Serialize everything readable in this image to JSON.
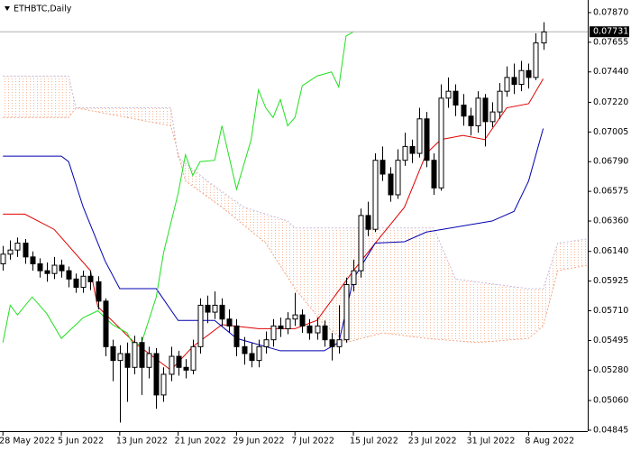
{
  "chart_data": {
    "type": "candlestick",
    "title": "ETHBTC,Daily",
    "xlim": [
      -0.4,
      80.1
    ],
    "xticks": [
      {
        "value": 0,
        "label": "28 May 2022"
      },
      {
        "value": 8,
        "label": "5 Jun 2022"
      },
      {
        "value": 16,
        "label": "13 Jun 2022"
      },
      {
        "value": 24,
        "label": "21 Jun 2022"
      },
      {
        "value": 32,
        "label": "29 Jun 2022"
      },
      {
        "value": 40,
        "label": "7 Jul 2022"
      },
      {
        "value": 48,
        "label": "15 Jul 2022"
      },
      {
        "value": 56,
        "label": "23 Jul 2022"
      },
      {
        "value": 64,
        "label": "31 Jul 2022"
      },
      {
        "value": 72,
        "label": "8 Aug 2022"
      }
    ],
    "ylim": [
      0.04838,
      0.07961
    ],
    "yticks": [
      {
        "value": 0.0787,
        "label": "0.07870"
      },
      0.07655,
      {
        "value": 0.0744,
        "label": "0.07440"
      },
      {
        "value": 0.0722,
        "label": "0.07220"
      },
      0.07005,
      {
        "value": 0.0679,
        "label": "0.06790"
      },
      0.06575,
      {
        "value": 0.0636,
        "label": "0.06360"
      },
      {
        "value": 0.0614,
        "label": "0.06140"
      },
      0.05925,
      {
        "value": 0.0571,
        "label": "0.05710"
      },
      0.05495,
      {
        "value": 0.0528,
        "label": "0.05280"
      },
      {
        "value": 0.0506,
        "label": "0.05060"
      },
      0.04845
    ],
    "current_price": 0.07731,
    "candles": {
      "open": [
        0.0605,
        0.0612,
        0.0615,
        0.062,
        0.061,
        0.0605,
        0.06,
        0.0598,
        0.0604,
        0.06,
        0.0594,
        0.0588,
        0.0596,
        0.0592,
        0.0578,
        0.0545,
        0.0535,
        0.054,
        0.053,
        0.0548,
        0.053,
        0.054,
        0.051,
        0.0525,
        0.0538,
        0.053,
        0.0528,
        0.0545,
        0.0575,
        0.057,
        0.0575,
        0.0565,
        0.056,
        0.0545,
        0.054,
        0.0535,
        0.0545,
        0.055,
        0.056,
        0.0558,
        0.0565,
        0.0568,
        0.056,
        0.0555,
        0.056,
        0.055,
        0.0545,
        0.055,
        0.059,
        0.06,
        0.064,
        0.063,
        0.068,
        0.067,
        0.0655,
        0.068,
        0.069,
        0.0685,
        0.071,
        0.068,
        0.066,
        0.0725,
        0.073,
        0.072,
        0.0712,
        0.0705,
        0.0725,
        0.0708,
        0.0715,
        0.073,
        0.074,
        0.0735,
        0.0745,
        0.074,
        0.0765
      ],
      "high": [
        0.0618,
        0.0622,
        0.0624,
        0.0623,
        0.0614,
        0.0609,
        0.0606,
        0.061,
        0.0608,
        0.0603,
        0.0598,
        0.06,
        0.06,
        0.0596,
        0.058,
        0.055,
        0.0546,
        0.0548,
        0.0553,
        0.0552,
        0.0545,
        0.0544,
        0.053,
        0.0545,
        0.0542,
        0.0536,
        0.055,
        0.058,
        0.0582,
        0.0585,
        0.058,
        0.0572,
        0.0565,
        0.0552,
        0.0548,
        0.055,
        0.0556,
        0.0565,
        0.0566,
        0.057,
        0.0584,
        0.0572,
        0.0565,
        0.0566,
        0.0564,
        0.0555,
        0.0575,
        0.0595,
        0.0608,
        0.0645,
        0.065,
        0.0685,
        0.069,
        0.0675,
        0.0688,
        0.07,
        0.0695,
        0.0718,
        0.0715,
        0.0685,
        0.0735,
        0.074,
        0.0735,
        0.0728,
        0.0718,
        0.073,
        0.0728,
        0.0722,
        0.0736,
        0.0748,
        0.075,
        0.0752,
        0.075,
        0.0772,
        0.078
      ],
      "low": [
        0.06,
        0.0608,
        0.061,
        0.0605,
        0.06,
        0.0595,
        0.0592,
        0.0594,
        0.0595,
        0.0588,
        0.0584,
        0.0584,
        0.0586,
        0.0572,
        0.0538,
        0.052,
        0.049,
        0.0505,
        0.0525,
        0.051,
        0.0522,
        0.05,
        0.0505,
        0.052,
        0.0524,
        0.0522,
        0.0525,
        0.054,
        0.0562,
        0.0565,
        0.056,
        0.0555,
        0.0538,
        0.0532,
        0.053,
        0.053,
        0.054,
        0.0545,
        0.0552,
        0.0554,
        0.056,
        0.0555,
        0.055,
        0.055,
        0.0545,
        0.0535,
        0.054,
        0.0548,
        0.0585,
        0.0595,
        0.0625,
        0.0628,
        0.0665,
        0.065,
        0.0652,
        0.0676,
        0.0678,
        0.0682,
        0.0675,
        0.0655,
        0.0658,
        0.0718,
        0.0712,
        0.0705,
        0.0698,
        0.07,
        0.069,
        0.0704,
        0.071,
        0.0726,
        0.0728,
        0.073,
        0.0732,
        0.0738,
        0.076
      ],
      "close": [
        0.0612,
        0.0615,
        0.062,
        0.061,
        0.0605,
        0.06,
        0.0598,
        0.0604,
        0.06,
        0.0594,
        0.0588,
        0.0596,
        0.0592,
        0.0578,
        0.0545,
        0.0535,
        0.054,
        0.053,
        0.0548,
        0.053,
        0.054,
        0.051,
        0.0525,
        0.0538,
        0.053,
        0.0528,
        0.0545,
        0.0575,
        0.057,
        0.0575,
        0.0565,
        0.056,
        0.0545,
        0.054,
        0.0535,
        0.0545,
        0.055,
        0.056,
        0.0558,
        0.0565,
        0.0568,
        0.056,
        0.0555,
        0.056,
        0.055,
        0.0545,
        0.055,
        0.059,
        0.06,
        0.064,
        0.063,
        0.068,
        0.067,
        0.0655,
        0.068,
        0.069,
        0.0685,
        0.071,
        0.068,
        0.066,
        0.0725,
        0.073,
        0.072,
        0.0712,
        0.0705,
        0.0725,
        0.0708,
        0.0715,
        0.073,
        0.074,
        0.0735,
        0.0745,
        0.074,
        0.0765,
        0.0773
      ]
    },
    "cloud": [
      {
        "color": "#f4a582",
        "x": [
          0,
          9,
          10,
          23,
          25,
          30,
          36,
          40,
          44,
          47,
          52,
          58,
          65,
          72,
          74,
          76,
          80
        ],
        "values": [
          0.0711,
          0.0711,
          0.0718,
          0.0705,
          0.0665,
          0.0646,
          0.062,
          0.0587,
          0.0561,
          0.0548,
          0.0555,
          0.0551,
          0.0548,
          0.0551,
          0.056,
          0.06,
          0.0604
        ]
      },
      {
        "color": "#c9b8d8",
        "x": [
          0,
          9,
          10,
          23,
          24,
          28,
          33,
          39,
          40,
          59,
          62,
          72,
          74,
          76,
          80
        ],
        "values": [
          0.0741,
          0.0741,
          0.0718,
          0.0718,
          0.0682,
          0.0665,
          0.0646,
          0.0636,
          0.0631,
          0.0631,
          0.0594,
          0.0587,
          0.0587,
          0.062,
          0.0623
        ]
      }
    ],
    "series": [
      {
        "color": "#e00000",
        "x": [
          0,
          3,
          7,
          12,
          13,
          18,
          23,
          26,
          30,
          35,
          40,
          43,
          48,
          51,
          55,
          58,
          60,
          63,
          66,
          69,
          72,
          74
        ],
        "values": [
          0.0641,
          0.0641,
          0.063,
          0.06,
          0.0574,
          0.0548,
          0.0528,
          0.0545,
          0.0561,
          0.0558,
          0.0558,
          0.0564,
          0.06,
          0.062,
          0.0646,
          0.0685,
          0.0695,
          0.0698,
          0.0695,
          0.0718,
          0.0721,
          0.0739
        ]
      },
      {
        "color": "#0000b0",
        "x": [
          0,
          8,
          9,
          11,
          14,
          16,
          21,
          24,
          29,
          32,
          38,
          44,
          46,
          48,
          51,
          55,
          58,
          67,
          70,
          72,
          74
        ],
        "values": [
          0.0683,
          0.0683,
          0.0679,
          0.0646,
          0.0607,
          0.0587,
          0.0587,
          0.0564,
          0.0564,
          0.0551,
          0.0542,
          0.0542,
          0.0548,
          0.0594,
          0.062,
          0.0621,
          0.0628,
          0.0636,
          0.0643,
          0.0665,
          0.0703
        ]
      },
      {
        "color": "#20e020",
        "x": [
          0,
          1,
          2,
          4,
          6,
          8,
          10,
          11,
          13,
          15,
          17,
          18,
          19,
          21,
          22,
          24,
          25,
          26,
          27,
          29,
          30,
          31,
          32,
          34,
          35,
          36,
          37,
          38,
          39,
          40,
          41,
          43,
          45,
          46,
          47,
          48
        ],
        "values": [
          0.0548,
          0.0575,
          0.0568,
          0.0581,
          0.0569,
          0.0551,
          0.0561,
          0.0566,
          0.0571,
          0.0561,
          0.0555,
          0.0545,
          0.0548,
          0.0581,
          0.0613,
          0.0656,
          0.0684,
          0.0669,
          0.0679,
          0.068,
          0.0705,
          0.0682,
          0.0659,
          0.0695,
          0.0731,
          0.0718,
          0.0711,
          0.0724,
          0.0705,
          0.0711,
          0.0734,
          0.0741,
          0.0744,
          0.0733,
          0.077,
          0.0773
        ]
      }
    ]
  }
}
